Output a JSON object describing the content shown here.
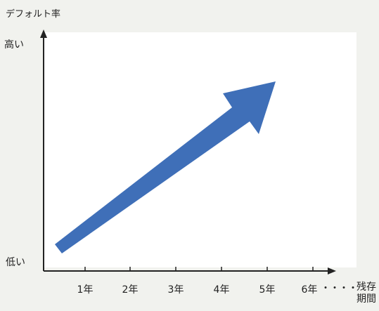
{
  "diagram": {
    "y_axis_title": "デフォルト率",
    "y_high_label": "高い",
    "y_low_label": "低い",
    "x_ticks": [
      "1年",
      "2年",
      "3年",
      "4年",
      "5年",
      "6年"
    ],
    "x_continuation": "・・・・",
    "x_axis_title": "残存期間",
    "arrow_color": "#3f6fb8",
    "axis_color": "#222222"
  }
}
